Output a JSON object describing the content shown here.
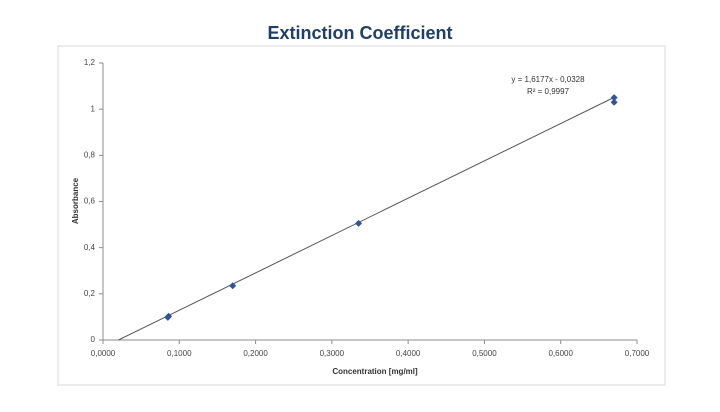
{
  "chart_data": {
    "type": "scatter",
    "title": "Extinction Coefficient",
    "x_label": "Concentration [mg/ml]",
    "y_label": "Absorbance",
    "x": [
      0.085,
      0.086,
      0.17,
      0.335,
      0.67,
      0.67
    ],
    "values": [
      0.098,
      0.103,
      0.235,
      0.505,
      1.03,
      1.05
    ],
    "color": "#2f5597",
    "xlim": [
      0,
      0.7
    ],
    "xticks": [
      {
        "value": 0,
        "label": "0,0000"
      },
      {
        "value": 0.1,
        "label": "0,1000"
      },
      {
        "value": 0.2,
        "label": "0,2000"
      },
      {
        "value": 0.3,
        "label": "0,3000"
      },
      {
        "value": 0.4,
        "label": "0,4000"
      },
      {
        "value": 0.5,
        "label": "0,5000"
      },
      {
        "value": 0.6,
        "label": "0,6000"
      },
      {
        "value": 0.7,
        "label": "0,7000"
      }
    ],
    "ylim": [
      0,
      1.2
    ],
    "yticks": [
      0,
      {
        "value": 0.2,
        "label": "0,2"
      },
      {
        "value": 0.4,
        "label": "0,4"
      },
      {
        "value": 0.6,
        "label": "0,6"
      },
      {
        "value": 0.8,
        "label": "0,8"
      },
      1,
      {
        "value": 1.2,
        "label": "1,2"
      }
    ],
    "grid": false,
    "trendline": {
      "slope": 1.6177,
      "intercept": -0.0328,
      "equation": "y = 1,6177x - 0,0328",
      "r2": 0.9997,
      "r2_label": "R² = 0,9997"
    }
  }
}
